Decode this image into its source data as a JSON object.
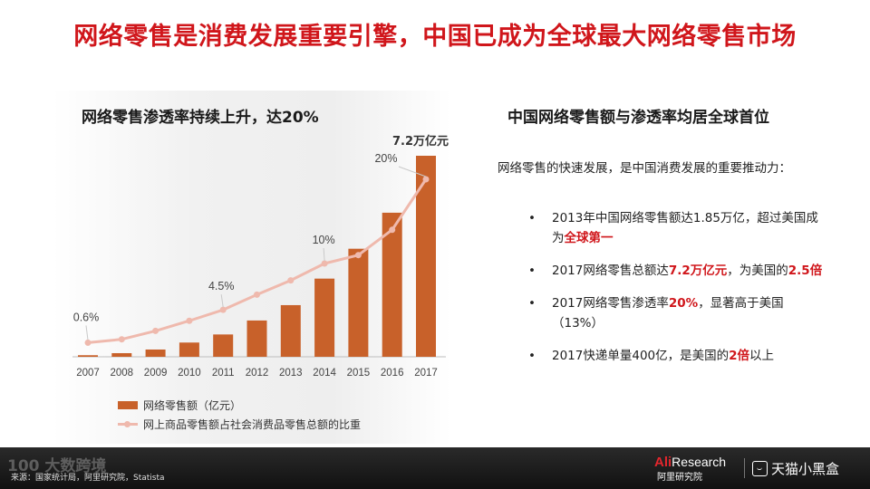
{
  "title": "网络零售是消费发展重要引擎，中国已成为全球最大网络零售市场",
  "left": {
    "chart_title": "网络零售渗透率持续上升，达20%",
    "legend": {
      "bar_label": "网络零售额（亿元）",
      "line_label": "网上商品零售额占社会消费品零售总额的比重"
    }
  },
  "right": {
    "title": "中国网络零售额与渗透率均居全球首位",
    "intro": "网络零售的快速发展，是中国消费发展的重要推动力：",
    "bullet_char": "•",
    "bullets": [
      {
        "pre": "2013年中国网络零售额达1.85万亿，超过美国成为",
        "hl": "全球第一",
        "post": ""
      },
      {
        "pre": "2017网络零售总额达",
        "hl": "7.2万亿元",
        "mid": "，为美国的",
        "hl2": "2.5倍"
      },
      {
        "pre": "2017网络零售渗透率",
        "hl": "20%",
        "post": "，显著高于美国（13%）"
      },
      {
        "pre": "2017快递单量400亿，是美国的",
        "hl": "2倍",
        "post": "以上"
      }
    ]
  },
  "chart_data": {
    "type": "bar",
    "categories": [
      "2007",
      "2008",
      "2009",
      "2010",
      "2011",
      "2012",
      "2013",
      "2014",
      "2015",
      "2016",
      "2017"
    ],
    "series": [
      {
        "name": "网络零售额（亿元）",
        "type": "bar",
        "values": [
          560,
          1300,
          2600,
          5100,
          8000,
          13000,
          18500,
          28000,
          38700,
          51600,
          72000
        ]
      },
      {
        "name": "网上商品零售额占社会消费品零售总额的比重",
        "type": "line",
        "values": [
          0.6,
          1.0,
          2.0,
          3.2,
          4.5,
          6.3,
          8.0,
          10.0,
          11.0,
          14.0,
          20.0
        ]
      }
    ],
    "annotations": [
      {
        "index": 0,
        "label": "0.6%"
      },
      {
        "index": 4,
        "label": "4.5%"
      },
      {
        "index": 7,
        "label": "10%"
      },
      {
        "index": 10,
        "label": "20%"
      }
    ],
    "top_label": {
      "index": 10,
      "label": "7.2万亿元"
    },
    "bar_color": "#c8612a",
    "line_color": "#efb9ad",
    "bar_ylim": [
      0,
      72000
    ],
    "line_ylim": [
      0,
      20
    ]
  },
  "footer": {
    "watermark": "100 大数跨境",
    "source": "来源：国家统计局，阿里研究院，Statista",
    "ali_red": "Ali",
    "ali_white": "Research",
    "ali_sub": "阿里研究院",
    "tmall": "天猫小黑盒"
  },
  "colors": {
    "accent": "#d0161b",
    "bar": "#c8612a",
    "line": "#efb9ad",
    "footer_bg": "#1a1a1a"
  }
}
